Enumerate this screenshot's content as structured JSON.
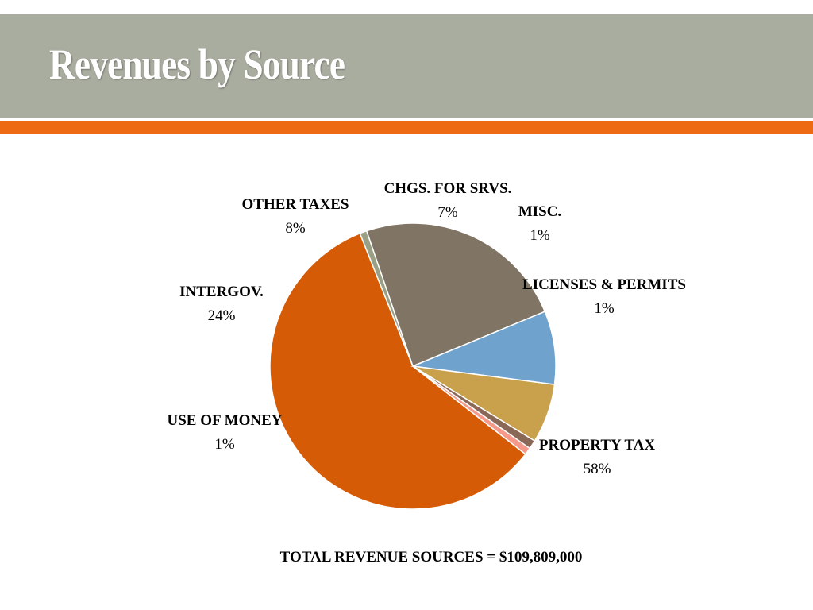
{
  "slide": {
    "title": "Revenues by Source"
  },
  "colors": {
    "title_bar": "#a9ad9f",
    "accent_band": "#ee6a12"
  },
  "chart_data": {
    "type": "pie",
    "start_angle_deg": 38,
    "slices": [
      {
        "label": "PROPERTY TAX",
        "display": "58%",
        "value": 58.4,
        "color": "#d55b07"
      },
      {
        "label": "USE OF MONEY",
        "display": "1%",
        "value": 0.8,
        "color": "#99a085"
      },
      {
        "label": "INTERGOV.",
        "display": "24%",
        "value": 24.0,
        "color": "#807464"
      },
      {
        "label": "OTHER TAXES",
        "display": "8%",
        "value": 8.3,
        "color": "#6fa2cd"
      },
      {
        "label": "CHGS. FOR SRVS.",
        "display": "7%",
        "value": 6.7,
        "color": "#c9a04b"
      },
      {
        "label": "MISC.",
        "display": "1%",
        "value": 1.0,
        "color": "#8a6858"
      },
      {
        "label": "LICENSES & PERMITS",
        "display": "1%",
        "value": 0.8,
        "color": "#f59a8a"
      }
    ],
    "footnote": "TOTAL REVENUE SOURCES = $109,809,000"
  }
}
